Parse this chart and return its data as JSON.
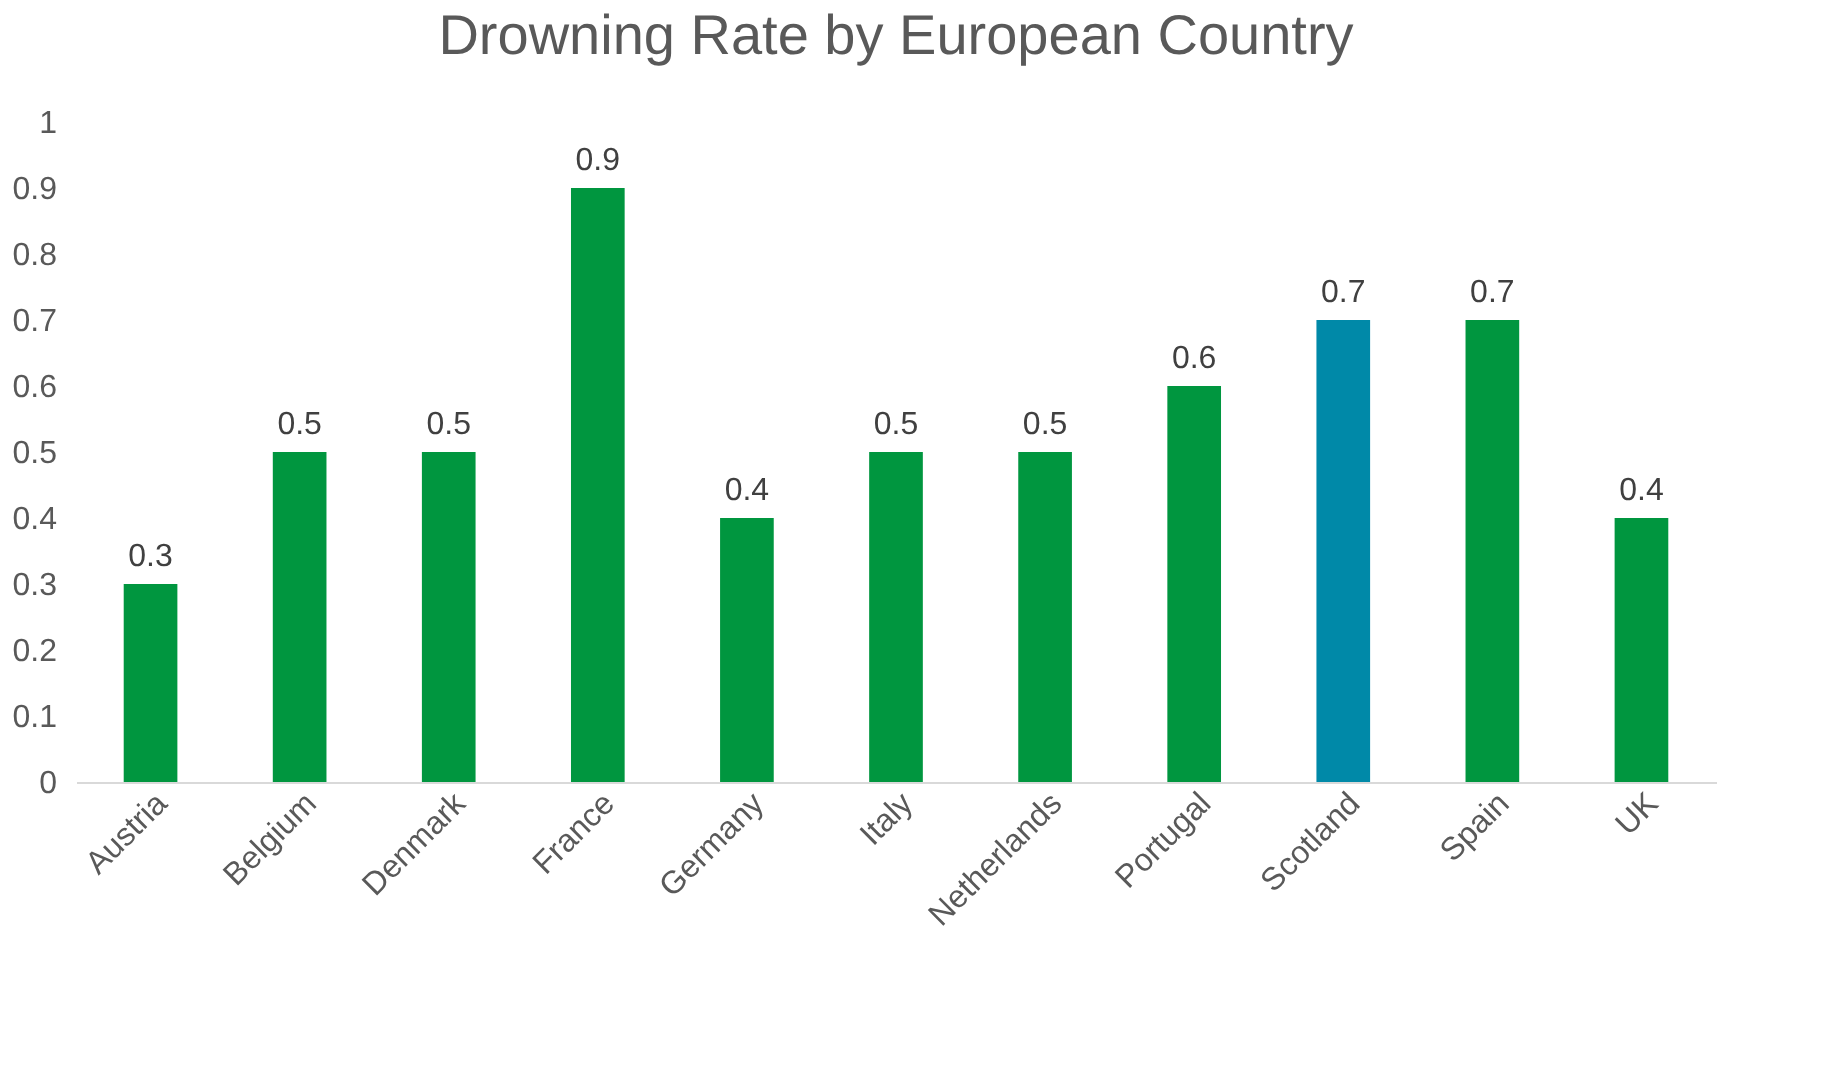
{
  "chart_data": {
    "type": "bar",
    "title": "Drowning Rate by European Country",
    "categories": [
      "Austria",
      "Belgium",
      "Denmark",
      "France",
      "Germany",
      "Italy",
      "Netherlands",
      "Portugal",
      "Scotland",
      "Spain",
      "UK"
    ],
    "values": [
      0.3,
      0.5,
      0.5,
      0.9,
      0.4,
      0.5,
      0.5,
      0.6,
      0.7,
      0.7,
      0.4
    ],
    "colors": [
      "#00963f",
      "#00963f",
      "#00963f",
      "#00963f",
      "#00963f",
      "#00963f",
      "#00963f",
      "#00963f",
      "#0089a8",
      "#00963f",
      "#00963f"
    ],
    "ylim": [
      0,
      1
    ],
    "yticks": [
      0,
      0.1,
      0.2,
      0.3,
      0.4,
      0.5,
      0.6,
      0.7,
      0.8,
      0.9,
      1
    ],
    "grid": false,
    "data_labels": true
  }
}
